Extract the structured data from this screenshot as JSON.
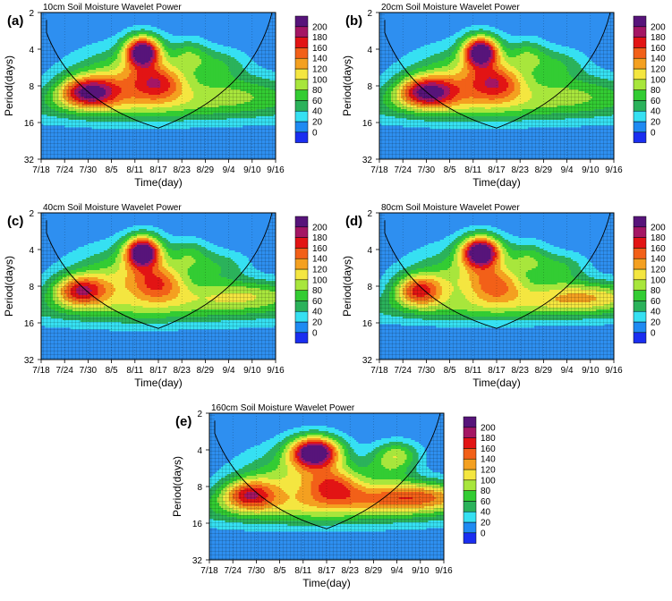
{
  "chart_data": [
    {
      "type": "heatmap",
      "panel_label": "(a)",
      "title": "10cm Soil Moisture Wavelet Power",
      "xlabel": "Time(day)",
      "ylabel": "Period(days)",
      "x_ticks": [
        "7/18",
        "7/24",
        "7/30",
        "8/5",
        "8/11",
        "8/17",
        "8/23",
        "8/29",
        "9/4",
        "9/10",
        "9/16"
      ],
      "y_ticks": [
        "2",
        "4",
        "8",
        "16",
        "32"
      ],
      "x_range_days": [
        0,
        60
      ],
      "y_range_log2_period": [
        1,
        5
      ],
      "colorbar_levels": [
        0,
        20,
        40,
        60,
        80,
        100,
        120,
        140,
        160,
        180,
        200
      ],
      "features": [
        {
          "x": 26,
          "y": 2.05,
          "sx": 3.2,
          "sy": 0.3,
          "amp": 205
        },
        {
          "x": 12,
          "y": 3.15,
          "sx": 5.5,
          "sy": 0.3,
          "amp": 150
        },
        {
          "x": 22,
          "y": 2.75,
          "sx": 10,
          "sy": 0.55,
          "amp": 85
        },
        {
          "x": 30,
          "y": 2.9,
          "sx": 5,
          "sy": 0.35,
          "amp": 95
        },
        {
          "x": 38,
          "y": 2.15,
          "sx": 3.5,
          "sy": 0.3,
          "amp": 55
        },
        {
          "x": 46,
          "y": 2.4,
          "sx": 5,
          "sy": 0.3,
          "amp": 45
        },
        {
          "x": 30,
          "y": 3.55,
          "sx": 32,
          "sy": 0.35,
          "amp": 60
        },
        {
          "x": 50,
          "y": 3.1,
          "sx": 12,
          "sy": 0.35,
          "amp": 50
        }
      ]
    },
    {
      "type": "heatmap",
      "panel_label": "(b)",
      "title": "20cm Soil Moisture Wavelet Power",
      "xlabel": "Time(day)",
      "ylabel": "Period(days)",
      "x_ticks": [
        "7/18",
        "7/24",
        "7/30",
        "8/5",
        "8/11",
        "8/17",
        "8/23",
        "8/29",
        "9/4",
        "9/10",
        "9/16"
      ],
      "y_ticks": [
        "2",
        "4",
        "8",
        "16",
        "32"
      ],
      "x_range_days": [
        0,
        60
      ],
      "y_range_log2_period": [
        1,
        5
      ],
      "colorbar_levels": [
        0,
        20,
        40,
        60,
        80,
        100,
        120,
        140,
        160,
        180,
        200
      ],
      "features": [
        {
          "x": 26,
          "y": 2.05,
          "sx": 3.2,
          "sy": 0.3,
          "amp": 205
        },
        {
          "x": 12,
          "y": 3.15,
          "sx": 5.5,
          "sy": 0.3,
          "amp": 150
        },
        {
          "x": 22,
          "y": 2.75,
          "sx": 10,
          "sy": 0.55,
          "amp": 85
        },
        {
          "x": 30,
          "y": 2.9,
          "sx": 5,
          "sy": 0.35,
          "amp": 95
        },
        {
          "x": 38,
          "y": 2.15,
          "sx": 3.5,
          "sy": 0.3,
          "amp": 55
        },
        {
          "x": 46,
          "y": 2.4,
          "sx": 5,
          "sy": 0.3,
          "amp": 45
        },
        {
          "x": 30,
          "y": 3.55,
          "sx": 32,
          "sy": 0.35,
          "amp": 60
        },
        {
          "x": 50,
          "y": 3.1,
          "sx": 12,
          "sy": 0.35,
          "amp": 50
        }
      ]
    },
    {
      "type": "heatmap",
      "panel_label": "(c)",
      "title": "40cm Soil Moisture Wavelet Power",
      "xlabel": "Time(day)",
      "ylabel": "Period(days)",
      "x_ticks": [
        "7/18",
        "7/24",
        "7/30",
        "8/5",
        "8/11",
        "8/17",
        "8/23",
        "8/29",
        "9/4",
        "9/10",
        "9/16"
      ],
      "y_ticks": [
        "2",
        "4",
        "8",
        "16",
        "32"
      ],
      "x_range_days": [
        0,
        60
      ],
      "y_range_log2_period": [
        1,
        5
      ],
      "colorbar_levels": [
        0,
        20,
        40,
        60,
        80,
        100,
        120,
        140,
        160,
        180,
        200
      ],
      "features": [
        {
          "x": 26,
          "y": 2.05,
          "sx": 3.2,
          "sy": 0.3,
          "amp": 210
        },
        {
          "x": 10,
          "y": 3.1,
          "sx": 5,
          "sy": 0.3,
          "amp": 135
        },
        {
          "x": 22,
          "y": 2.7,
          "sx": 10,
          "sy": 0.55,
          "amp": 80
        },
        {
          "x": 30,
          "y": 2.9,
          "sx": 5,
          "sy": 0.35,
          "amp": 90
        },
        {
          "x": 38,
          "y": 2.15,
          "sx": 3.5,
          "sy": 0.3,
          "amp": 50
        },
        {
          "x": 46,
          "y": 2.45,
          "sx": 5,
          "sy": 0.3,
          "amp": 45
        },
        {
          "x": 30,
          "y": 3.6,
          "sx": 32,
          "sy": 0.35,
          "amp": 60
        },
        {
          "x": 52,
          "y": 3.2,
          "sx": 12,
          "sy": 0.3,
          "amp": 70
        }
      ]
    },
    {
      "type": "heatmap",
      "panel_label": "(d)",
      "title": "80cm Soil Moisture Wavelet Power",
      "xlabel": "Time(day)",
      "ylabel": "Period(days)",
      "x_ticks": [
        "7/18",
        "7/24",
        "7/30",
        "8/5",
        "8/11",
        "8/17",
        "8/23",
        "8/29",
        "9/4",
        "9/10",
        "9/16"
      ],
      "y_ticks": [
        "2",
        "4",
        "8",
        "16",
        "32"
      ],
      "x_range_days": [
        0,
        60
      ],
      "y_range_log2_period": [
        1,
        5
      ],
      "colorbar_levels": [
        0,
        20,
        40,
        60,
        80,
        100,
        120,
        140,
        160,
        180,
        200
      ],
      "features": [
        {
          "x": 26,
          "y": 2.05,
          "sx": 3.5,
          "sy": 0.3,
          "amp": 215
        },
        {
          "x": 10,
          "y": 3.1,
          "sx": 4.5,
          "sy": 0.3,
          "amp": 130
        },
        {
          "x": 22,
          "y": 2.7,
          "sx": 10,
          "sy": 0.55,
          "amp": 75
        },
        {
          "x": 30,
          "y": 2.95,
          "sx": 5,
          "sy": 0.35,
          "amp": 85
        },
        {
          "x": 38,
          "y": 2.2,
          "sx": 3.5,
          "sy": 0.3,
          "amp": 50
        },
        {
          "x": 46,
          "y": 2.5,
          "sx": 5,
          "sy": 0.3,
          "amp": 55
        },
        {
          "x": 30,
          "y": 3.6,
          "sx": 32,
          "sy": 0.3,
          "amp": 55
        },
        {
          "x": 52,
          "y": 3.25,
          "sx": 12,
          "sy": 0.3,
          "amp": 95
        }
      ]
    },
    {
      "type": "heatmap",
      "panel_label": "(e)",
      "title": "160cm Soil Moisture Wavelet Power",
      "xlabel": "Time(day)",
      "ylabel": "Period(days)",
      "x_ticks": [
        "7/18",
        "7/24",
        "7/30",
        "8/5",
        "8/11",
        "8/17",
        "8/23",
        "8/29",
        "9/4",
        "9/10",
        "9/16"
      ],
      "y_ticks": [
        "2",
        "4",
        "8",
        "16",
        "32"
      ],
      "x_range_days": [
        0,
        60
      ],
      "y_range_log2_period": [
        1,
        5
      ],
      "colorbar_levels": [
        0,
        20,
        40,
        60,
        80,
        100,
        120,
        140,
        160,
        180,
        200
      ],
      "features": [
        {
          "x": 27,
          "y": 2.05,
          "sx": 4.5,
          "sy": 0.3,
          "amp": 215
        },
        {
          "x": 10,
          "y": 3.2,
          "sx": 5,
          "sy": 0.3,
          "amp": 120
        },
        {
          "x": 22,
          "y": 2.75,
          "sx": 10,
          "sy": 0.55,
          "amp": 80
        },
        {
          "x": 32,
          "y": 2.95,
          "sx": 5,
          "sy": 0.35,
          "amp": 90
        },
        {
          "x": 48,
          "y": 2.1,
          "sx": 4,
          "sy": 0.25,
          "amp": 70
        },
        {
          "x": 46,
          "y": 2.5,
          "sx": 5,
          "sy": 0.3,
          "amp": 50
        },
        {
          "x": 28,
          "y": 3.6,
          "sx": 30,
          "sy": 0.35,
          "amp": 70
        },
        {
          "x": 52,
          "y": 3.25,
          "sx": 12,
          "sy": 0.3,
          "amp": 120
        }
      ]
    }
  ],
  "colors": {
    "background": "#2e8ff0",
    "palette": [
      "#1a2ef0",
      "#1f8af2",
      "#36e0f2",
      "#2bb25b",
      "#33cc33",
      "#a8e63c",
      "#f4e640",
      "#f4a020",
      "#f26018",
      "#e21414",
      "#a41664",
      "#57147a"
    ]
  }
}
